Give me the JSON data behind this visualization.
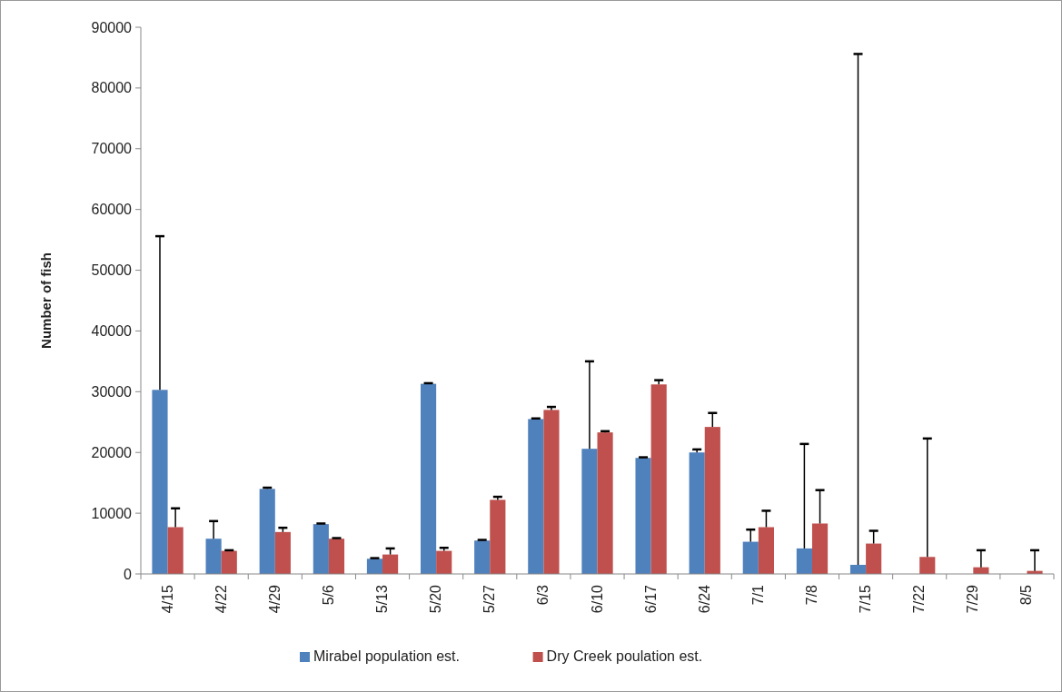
{
  "chart_data": {
    "type": "bar",
    "ylabel": "Number of fish",
    "categories": [
      "4/15",
      "4/22",
      "4/29",
      "5/6",
      "5/13",
      "5/20",
      "5/27",
      "6/3",
      "6/10",
      "6/17",
      "6/24",
      "7/1",
      "7/8",
      "7/15",
      "7/22",
      "7/29",
      "8/5"
    ],
    "series": [
      {
        "name": "Mirabel population est.",
        "color": "#4f81bd",
        "values": [
          30300,
          5800,
          14000,
          8200,
          2500,
          31300,
          5500,
          25500,
          20600,
          19100,
          20000,
          5300,
          4200,
          1500,
          null,
          null,
          null
        ],
        "errors": [
          [
            30300,
            55600
          ],
          [
            5800,
            8700
          ],
          [
            14000,
            14200
          ],
          [
            8200,
            8300
          ],
          [
            2500,
            2600
          ],
          [
            31300,
            31400
          ],
          [
            5500,
            5600
          ],
          [
            25500,
            25600
          ],
          [
            20600,
            35000
          ],
          [
            19100,
            19200
          ],
          [
            20000,
            20500
          ],
          [
            5300,
            7300
          ],
          [
            4200,
            21400
          ],
          [
            1500,
            85600
          ],
          null,
          null,
          null
        ]
      },
      {
        "name": "Dry Creek poulation est.",
        "color": "#c0504d",
        "values": [
          7700,
          3800,
          6900,
          5800,
          3200,
          3800,
          12200,
          27000,
          23300,
          31200,
          24200,
          7700,
          8300,
          5000,
          2800,
          1100,
          500
        ],
        "errors": [
          [
            7700,
            10800
          ],
          [
            3800,
            3900
          ],
          [
            6900,
            7600
          ],
          [
            5800,
            5900
          ],
          [
            3200,
            4200
          ],
          [
            3800,
            4300
          ],
          [
            12200,
            12700
          ],
          [
            27000,
            27500
          ],
          [
            23300,
            23500
          ],
          [
            31200,
            31900
          ],
          [
            24200,
            26500
          ],
          [
            7700,
            10400
          ],
          [
            8300,
            13800
          ],
          [
            5000,
            7100
          ],
          [
            2800,
            22300
          ],
          [
            1100,
            3900
          ],
          [
            500,
            3900
          ]
        ]
      }
    ],
    "ylim": [
      0,
      90000
    ],
    "yticks": [
      0,
      10000,
      20000,
      30000,
      40000,
      50000,
      60000,
      70000,
      80000,
      90000
    ],
    "grid": false,
    "legend": "bottom"
  }
}
